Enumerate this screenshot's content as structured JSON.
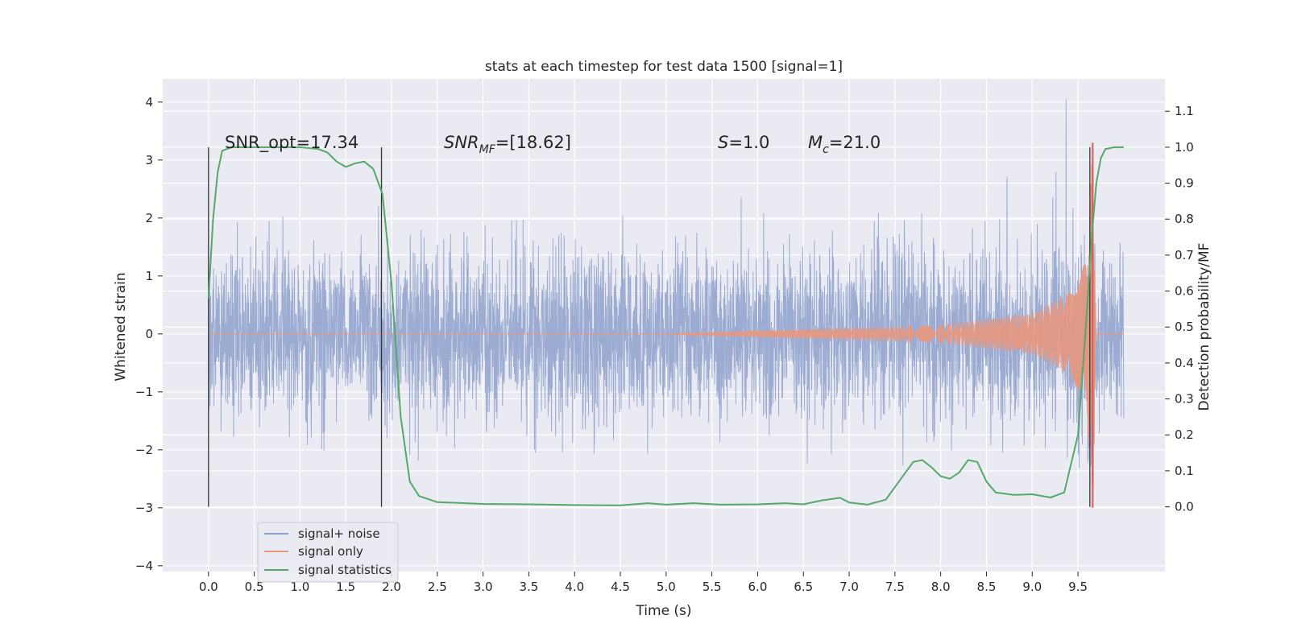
{
  "chart_data": {
    "type": "line",
    "title": "stats at each timestep for test data 1500 [signal=1]",
    "xlabel": "Time (s)",
    "ylabel": "Whitened strain",
    "ylabel_right": "Detection probability/MF",
    "xlim": [
      -0.5,
      10.45
    ],
    "ylim": [
      -4.1,
      4.4
    ],
    "ylim_right": [
      -0.18,
      1.19
    ],
    "x_ticks": [
      "0.0",
      "0.5",
      "1.0",
      "1.5",
      "2.0",
      "2.5",
      "3.0",
      "3.5",
      "4.0",
      "4.5",
      "5.0",
      "5.5",
      "6.0",
      "6.5",
      "7.0",
      "7.5",
      "8.0",
      "8.5",
      "9.0",
      "9.5"
    ],
    "y_ticks": [
      "−4",
      "−3",
      "−2",
      "−1",
      "0",
      "1",
      "2",
      "3",
      "4"
    ],
    "y_ticks_right": [
      "0.0",
      "0.1",
      "0.2",
      "0.3",
      "0.4",
      "0.5",
      "0.6",
      "0.7",
      "0.8",
      "0.9",
      "1.0",
      "1.1"
    ],
    "grid": true,
    "legend_position": "lower-left",
    "annotations": {
      "snr_opt": "SNR_opt=17.34",
      "snr_mf_main": "SNR",
      "snr_mf_sub": "MF",
      "snr_mf_value": "=[18.62]",
      "s_main": "S",
      "s_value": "=1.0",
      "mc_main": "M",
      "mc_sub": "c",
      "mc_value": "=21.0"
    },
    "vertical_markers": [
      0.0,
      1.89,
      9.63
    ],
    "series": [
      {
        "name": "signal+ noise",
        "color": "#8da0cb",
        "axis": "left",
        "x_range": [
          0.0,
          10.0
        ],
        "amplitude_envelope": {
          "core": 1.35,
          "peaks": 3.0,
          "max_peak": 4.05,
          "max_peak_time": 9.37
        }
      },
      {
        "name": "signal only",
        "color": "#e8977d",
        "axis": "left",
        "description_points": [
          [
            0.0,
            0.0
          ],
          [
            5.0,
            0.0
          ],
          [
            6.0,
            0.06
          ],
          [
            7.0,
            0.1
          ],
          [
            8.0,
            0.16
          ],
          [
            9.0,
            0.35
          ],
          [
            9.4,
            0.7
          ],
          [
            9.6,
            1.3
          ],
          [
            9.66,
            3.3
          ],
          [
            9.7,
            0.0
          ],
          [
            10.0,
            0.0
          ]
        ]
      },
      {
        "name": "signal statistics",
        "color": "#55a868",
        "axis": "right",
        "x": [
          0.0,
          0.05,
          0.1,
          0.15,
          0.25,
          0.5,
          1.0,
          1.2,
          1.3,
          1.4,
          1.5,
          1.6,
          1.7,
          1.8,
          1.9,
          2.0,
          2.1,
          2.2,
          2.3,
          2.5,
          3.0,
          3.5,
          4.0,
          4.5,
          4.8,
          5.0,
          5.3,
          5.6,
          6.0,
          6.3,
          6.5,
          6.7,
          6.9,
          7.0,
          7.2,
          7.4,
          7.6,
          7.7,
          7.8,
          7.9,
          8.0,
          8.1,
          8.2,
          8.3,
          8.4,
          8.5,
          8.6,
          8.8,
          9.0,
          9.2,
          9.35,
          9.5,
          9.6,
          9.65,
          9.7,
          9.75,
          9.8,
          9.9,
          10.0
        ],
        "values": [
          0.58,
          0.8,
          0.93,
          0.99,
          1.0,
          1.0,
          1.0,
          0.995,
          0.985,
          0.96,
          0.945,
          0.955,
          0.96,
          0.94,
          0.87,
          0.62,
          0.25,
          0.07,
          0.03,
          0.013,
          0.008,
          0.007,
          0.005,
          0.004,
          0.01,
          0.006,
          0.01,
          0.006,
          0.007,
          0.01,
          0.007,
          0.018,
          0.025,
          0.012,
          0.006,
          0.02,
          0.09,
          0.125,
          0.13,
          0.11,
          0.085,
          0.078,
          0.095,
          0.13,
          0.125,
          0.07,
          0.04,
          0.033,
          0.035,
          0.026,
          0.04,
          0.2,
          0.55,
          0.75,
          0.9,
          0.97,
          0.995,
          1.0,
          1.0
        ]
      }
    ]
  }
}
